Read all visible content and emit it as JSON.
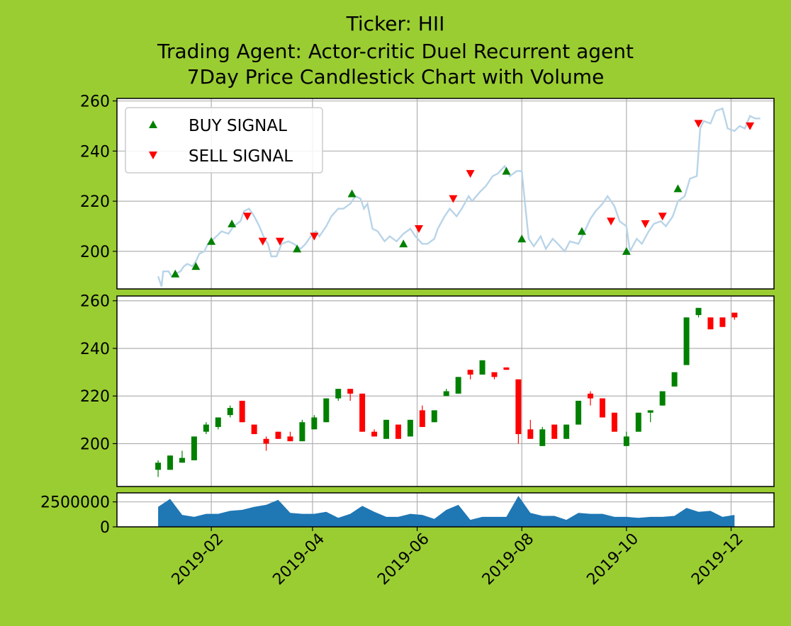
{
  "title_lines": [
    "Ticker: HII",
    "Trading Agent: Actor-critic Duel Recurrent agent",
    "7Day Price Candlestick Chart with Volume"
  ],
  "colors": {
    "background": "#9acd32",
    "buy": "#008000",
    "sell": "#ff0000",
    "price_line": "#b8d4e8",
    "volume": "#1f77b4",
    "grid": "#b0b0b0"
  },
  "chart_data": [
    {
      "type": "line",
      "panel": "price",
      "ylim": [
        185,
        261
      ],
      "yticks": [
        "200",
        "220",
        "240",
        "260"
      ],
      "grid": true,
      "legend": {
        "placement": "upper-left",
        "entries": [
          "BUY SIGNAL",
          "SELL SIGNAL"
        ]
      },
      "price_series": [
        [
          "2019-01-01",
          190
        ],
        [
          "2019-01-03",
          186
        ],
        [
          "2019-01-04",
          192
        ],
        [
          "2019-01-07",
          192
        ],
        [
          "2019-01-09",
          190
        ],
        [
          "2019-01-11",
          191
        ],
        [
          "2019-01-14",
          192
        ],
        [
          "2019-01-16",
          194
        ],
        [
          "2019-01-18",
          195
        ],
        [
          "2019-01-21",
          194
        ],
        [
          "2019-01-23",
          196
        ],
        [
          "2019-01-25",
          199
        ],
        [
          "2019-01-28",
          200
        ],
        [
          "2019-01-30",
          203
        ],
        [
          "2019-02-01",
          204
        ],
        [
          "2019-02-04",
          206
        ],
        [
          "2019-02-07",
          208
        ],
        [
          "2019-02-11",
          207
        ],
        [
          "2019-02-14",
          210
        ],
        [
          "2019-02-18",
          212
        ],
        [
          "2019-02-20",
          216
        ],
        [
          "2019-02-23",
          217
        ],
        [
          "2019-02-26",
          214
        ],
        [
          "2019-03-01",
          210
        ],
        [
          "2019-03-04",
          205
        ],
        [
          "2019-03-06",
          203
        ],
        [
          "2019-03-08",
          198
        ],
        [
          "2019-03-11",
          198
        ],
        [
          "2019-03-14",
          203
        ],
        [
          "2019-03-18",
          204
        ],
        [
          "2019-03-21",
          203
        ],
        [
          "2019-03-25",
          201
        ],
        [
          "2019-03-28",
          203
        ],
        [
          "2019-04-01",
          207
        ],
        [
          "2019-04-03",
          208
        ],
        [
          "2019-04-05",
          206
        ],
        [
          "2019-04-09",
          210
        ],
        [
          "2019-04-12",
          214
        ],
        [
          "2019-04-16",
          217
        ],
        [
          "2019-04-19",
          217
        ],
        [
          "2019-04-23",
          219
        ],
        [
          "2019-04-26",
          222
        ],
        [
          "2019-04-29",
          221
        ],
        [
          "2019-05-01",
          217
        ],
        [
          "2019-05-03",
          219
        ],
        [
          "2019-05-06",
          209
        ],
        [
          "2019-05-09",
          208
        ],
        [
          "2019-05-13",
          204
        ],
        [
          "2019-05-16",
          206
        ],
        [
          "2019-05-20",
          204
        ],
        [
          "2019-05-24",
          207
        ],
        [
          "2019-05-28",
          209
        ],
        [
          "2019-05-31",
          206
        ],
        [
          "2019-06-04",
          203
        ],
        [
          "2019-06-07",
          203
        ],
        [
          "2019-06-11",
          205
        ],
        [
          "2019-06-13",
          209
        ],
        [
          "2019-06-17",
          214
        ],
        [
          "2019-06-20",
          217
        ],
        [
          "2019-06-24",
          214
        ],
        [
          "2019-06-27",
          217
        ],
        [
          "2019-07-01",
          222
        ],
        [
          "2019-07-03",
          220
        ],
        [
          "2019-07-08",
          224
        ],
        [
          "2019-07-11",
          226
        ],
        [
          "2019-07-15",
          230
        ],
        [
          "2019-07-18",
          231
        ],
        [
          "2019-07-22",
          234
        ],
        [
          "2019-07-25",
          230
        ],
        [
          "2019-07-29",
          232
        ],
        [
          "2019-08-01",
          232
        ],
        [
          "2019-08-02",
          225
        ],
        [
          "2019-08-05",
          205
        ],
        [
          "2019-08-08",
          202
        ],
        [
          "2019-08-12",
          206
        ],
        [
          "2019-08-15",
          201
        ],
        [
          "2019-08-19",
          205
        ],
        [
          "2019-08-22",
          203
        ],
        [
          "2019-08-26",
          200
        ],
        [
          "2019-08-29",
          204
        ],
        [
          "2019-09-03",
          203
        ],
        [
          "2019-09-06",
          207
        ],
        [
          "2019-09-10",
          213
        ],
        [
          "2019-09-13",
          216
        ],
        [
          "2019-09-17",
          219
        ],
        [
          "2019-09-20",
          222
        ],
        [
          "2019-09-24",
          218
        ],
        [
          "2019-09-27",
          212
        ],
        [
          "2019-10-01",
          210
        ],
        [
          "2019-10-03",
          200
        ],
        [
          "2019-10-07",
          205
        ],
        [
          "2019-10-10",
          203
        ],
        [
          "2019-10-14",
          208
        ],
        [
          "2019-10-17",
          211
        ],
        [
          "2019-10-21",
          212
        ],
        [
          "2019-10-24",
          210
        ],
        [
          "2019-10-28",
          214
        ],
        [
          "2019-10-31",
          220
        ],
        [
          "2019-11-04",
          222
        ],
        [
          "2019-11-07",
          229
        ],
        [
          "2019-11-11",
          230
        ],
        [
          "2019-11-13",
          249
        ],
        [
          "2019-11-15",
          252
        ],
        [
          "2019-11-19",
          251
        ],
        [
          "2019-11-22",
          256
        ],
        [
          "2019-11-26",
          257
        ],
        [
          "2019-11-29",
          249
        ],
        [
          "2019-12-03",
          248
        ],
        [
          "2019-12-06",
          250
        ],
        [
          "2019-12-09",
          249
        ],
        [
          "2019-12-12",
          254
        ],
        [
          "2019-12-15",
          253
        ],
        [
          "2019-12-18",
          253
        ]
      ],
      "buy_signals": [
        [
          "2019-01-11",
          191
        ],
        [
          "2019-01-23",
          194
        ],
        [
          "2019-02-01",
          204
        ],
        [
          "2019-02-13",
          211
        ],
        [
          "2019-03-23",
          201
        ],
        [
          "2019-04-24",
          223
        ],
        [
          "2019-05-24",
          203
        ],
        [
          "2019-07-23",
          232
        ],
        [
          "2019-08-01",
          205
        ],
        [
          "2019-09-05",
          208
        ],
        [
          "2019-10-01",
          200
        ],
        [
          "2019-10-31",
          225
        ]
      ],
      "sell_signals": [
        [
          "2019-02-22",
          214
        ],
        [
          "2019-03-03",
          204
        ],
        [
          "2019-03-13",
          204
        ],
        [
          "2019-04-02",
          206
        ],
        [
          "2019-06-02",
          209
        ],
        [
          "2019-06-22",
          221
        ],
        [
          "2019-07-02",
          231
        ],
        [
          "2019-09-22",
          212
        ],
        [
          "2019-10-12",
          211
        ],
        [
          "2019-10-22",
          214
        ],
        [
          "2019-11-12",
          251
        ],
        [
          "2019-12-12",
          250
        ]
      ]
    },
    {
      "type": "candlestick",
      "panel": "ohlc",
      "ylim": [
        182,
        262
      ],
      "yticks": [
        "200",
        "220",
        "240",
        "260"
      ],
      "grid": true,
      "candles": [
        [
          "2019-01-01",
          189,
          192,
          186,
          193
        ],
        [
          "2019-01-08",
          189,
          195,
          189,
          195
        ],
        [
          "2019-01-15",
          192,
          194,
          192,
          197
        ],
        [
          "2019-01-22",
          193,
          203,
          193,
          203
        ],
        [
          "2019-01-29",
          205,
          208,
          204,
          209
        ],
        [
          "2019-02-05",
          207,
          211,
          206,
          211
        ],
        [
          "2019-02-12",
          212,
          215,
          211,
          216
        ],
        [
          "2019-02-19",
          218,
          209,
          209,
          218
        ],
        [
          "2019-02-26",
          208,
          204,
          204,
          208
        ],
        [
          "2019-03-05",
          202,
          200,
          197,
          203
        ],
        [
          "2019-03-12",
          205,
          202,
          202,
          205
        ],
        [
          "2019-03-19",
          203,
          201,
          201,
          205
        ],
        [
          "2019-03-26",
          201,
          209,
          201,
          210
        ],
        [
          "2019-04-02",
          206,
          211,
          206,
          212
        ],
        [
          "2019-04-09",
          209,
          219,
          209,
          219
        ],
        [
          "2019-04-16",
          219,
          223,
          218,
          223
        ],
        [
          "2019-04-23",
          223,
          221,
          218,
          223
        ],
        [
          "2019-04-30",
          221,
          205,
          205,
          221
        ],
        [
          "2019-05-07",
          205,
          203,
          203,
          206
        ],
        [
          "2019-05-14",
          202,
          210,
          202,
          210
        ],
        [
          "2019-05-21",
          208,
          202,
          202,
          208
        ],
        [
          "2019-05-28",
          203,
          210,
          203,
          210
        ],
        [
          "2019-06-04",
          214,
          207,
          207,
          216
        ],
        [
          "2019-06-11",
          209,
          214,
          209,
          214
        ],
        [
          "2019-06-18",
          220,
          222,
          220,
          223
        ],
        [
          "2019-06-25",
          221,
          228,
          221,
          228
        ],
        [
          "2019-07-02",
          231,
          229,
          227,
          231
        ],
        [
          "2019-07-09",
          229,
          235,
          229,
          235
        ],
        [
          "2019-07-16",
          230,
          228,
          227,
          230
        ],
        [
          "2019-07-23",
          232,
          231,
          231,
          232
        ],
        [
          "2019-07-30",
          227,
          204,
          200,
          227
        ],
        [
          "2019-08-06",
          206,
          202,
          202,
          210
        ],
        [
          "2019-08-13",
          199,
          206,
          199,
          207
        ],
        [
          "2019-08-20",
          208,
          202,
          202,
          208
        ],
        [
          "2019-08-27",
          202,
          208,
          202,
          208
        ],
        [
          "2019-09-03",
          208,
          218,
          208,
          218
        ],
        [
          "2019-09-10",
          221,
          219,
          216,
          222
        ],
        [
          "2019-09-17",
          219,
          211,
          211,
          219
        ],
        [
          "2019-09-24",
          213,
          205,
          205,
          213
        ],
        [
          "2019-10-01",
          199,
          203,
          199,
          205
        ],
        [
          "2019-10-08",
          205,
          213,
          205,
          213
        ],
        [
          "2019-10-15",
          213,
          214,
          209,
          214
        ],
        [
          "2019-10-22",
          216,
          222,
          216,
          222
        ],
        [
          "2019-10-29",
          224,
          230,
          224,
          230
        ],
        [
          "2019-11-05",
          233,
          253,
          233,
          253
        ],
        [
          "2019-11-12",
          254,
          257,
          253,
          257
        ],
        [
          "2019-11-19",
          253,
          248,
          248,
          253
        ],
        [
          "2019-11-26",
          253,
          249,
          249,
          253
        ],
        [
          "2019-12-03",
          255,
          253,
          252,
          255
        ]
      ]
    },
    {
      "type": "area",
      "panel": "volume",
      "ylim": [
        0,
        3400000
      ],
      "yticks": [
        "0",
        "2500000"
      ],
      "grid": true,
      "xticks": [
        "2019-02",
        "2019-04",
        "2019-06",
        "2019-08",
        "2019-10",
        "2019-12"
      ],
      "volume": [
        [
          "2019-01-01",
          2000000
        ],
        [
          "2019-01-08",
          2800000
        ],
        [
          "2019-01-15",
          1200000
        ],
        [
          "2019-01-22",
          1000000
        ],
        [
          "2019-01-29",
          1300000
        ],
        [
          "2019-02-05",
          1300000
        ],
        [
          "2019-02-12",
          1600000
        ],
        [
          "2019-02-19",
          1700000
        ],
        [
          "2019-02-26",
          2000000
        ],
        [
          "2019-03-05",
          2200000
        ],
        [
          "2019-03-12",
          2700000
        ],
        [
          "2019-03-19",
          1400000
        ],
        [
          "2019-03-26",
          1300000
        ],
        [
          "2019-04-02",
          1300000
        ],
        [
          "2019-04-09",
          1500000
        ],
        [
          "2019-04-16",
          900000
        ],
        [
          "2019-04-23",
          1300000
        ],
        [
          "2019-04-30",
          2100000
        ],
        [
          "2019-05-07",
          1500000
        ],
        [
          "2019-05-14",
          1000000
        ],
        [
          "2019-05-21",
          1000000
        ],
        [
          "2019-05-28",
          1300000
        ],
        [
          "2019-06-04",
          1200000
        ],
        [
          "2019-06-11",
          800000
        ],
        [
          "2019-06-18",
          1700000
        ],
        [
          "2019-06-25",
          2200000
        ],
        [
          "2019-07-02",
          700000
        ],
        [
          "2019-07-09",
          1000000
        ],
        [
          "2019-07-16",
          1000000
        ],
        [
          "2019-07-23",
          1000000
        ],
        [
          "2019-07-30",
          3100000
        ],
        [
          "2019-08-06",
          1400000
        ],
        [
          "2019-08-13",
          1100000
        ],
        [
          "2019-08-20",
          1100000
        ],
        [
          "2019-08-27",
          700000
        ],
        [
          "2019-09-03",
          1400000
        ],
        [
          "2019-09-10",
          1300000
        ],
        [
          "2019-09-17",
          1300000
        ],
        [
          "2019-09-24",
          1000000
        ],
        [
          "2019-10-01",
          1000000
        ],
        [
          "2019-10-08",
          900000
        ],
        [
          "2019-10-15",
          1000000
        ],
        [
          "2019-10-22",
          1000000
        ],
        [
          "2019-10-29",
          1100000
        ],
        [
          "2019-11-05",
          1900000
        ],
        [
          "2019-11-12",
          1500000
        ],
        [
          "2019-11-19",
          1600000
        ],
        [
          "2019-11-26",
          1000000
        ],
        [
          "2019-12-03",
          1200000
        ]
      ]
    }
  ]
}
